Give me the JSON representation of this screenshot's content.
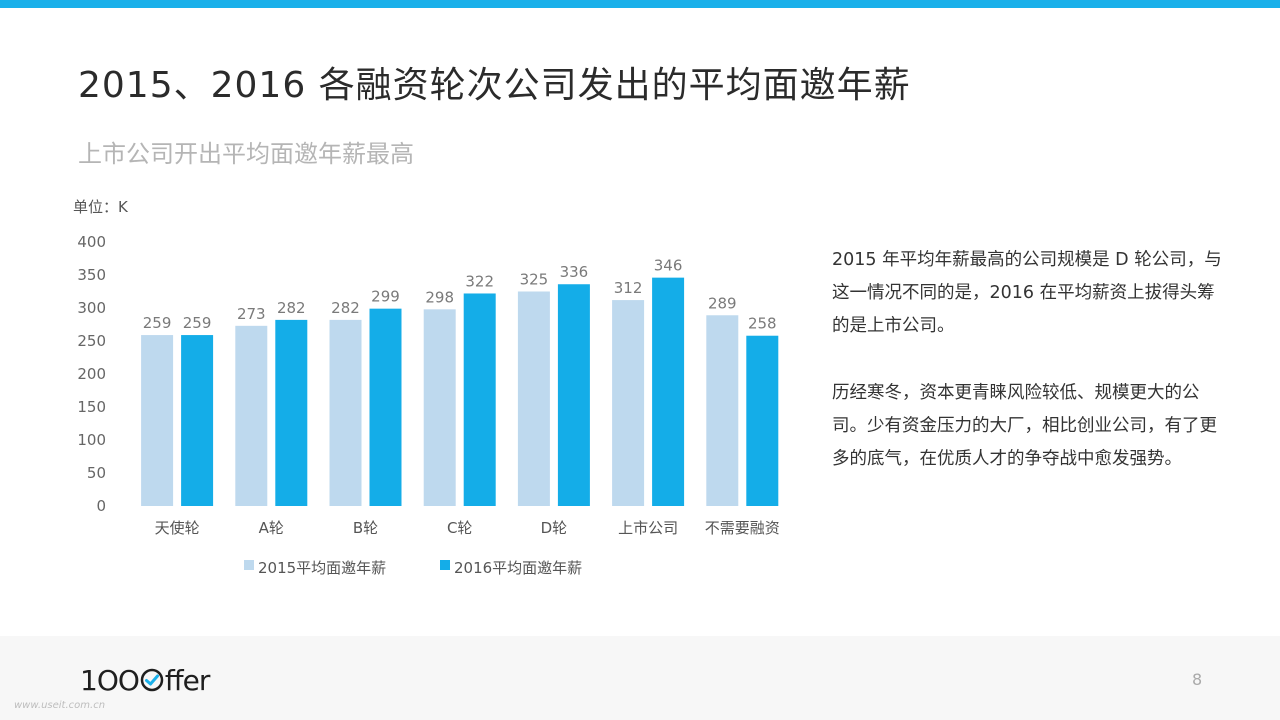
{
  "header": {
    "title": "2015、2016 各融资轮次公司发出的平均面邀年薪",
    "subtitle": "上市公司开出平均面邀年薪最高"
  },
  "colors": {
    "accent": "#1ab0ea",
    "series_2015": "#bed9ee",
    "series_2016": "#14ade8"
  },
  "chart_data": {
    "type": "bar",
    "unit_label": "单位：K",
    "categories": [
      "天使轮",
      "A轮",
      "B轮",
      "C轮",
      "D轮",
      "上市公司",
      "不需要融资"
    ],
    "series": [
      {
        "name": "2015平均面邀年薪",
        "values": [
          259,
          273,
          282,
          298,
          325,
          312,
          289
        ]
      },
      {
        "name": "2016平均面邀年薪",
        "values": [
          259,
          282,
          299,
          322,
          336,
          346,
          258
        ]
      }
    ],
    "ylim": [
      0,
      400
    ],
    "yticks": [
      0,
      50,
      100,
      150,
      200,
      250,
      300,
      350,
      400
    ],
    "grid": false,
    "legend": "bottom",
    "data_labels": true
  },
  "side": {
    "paragraph1": "2015 年平均年薪最高的公司规模是 D 轮公司，与这一情况不同的是，2016 在平均薪资上拔得头筹的是上市公司。",
    "paragraph2": "历经寒冬，资本更青睐风险较低、规模更大的公司。少有资金压力的大厂，相比创业公司，有了更多的底气，在优质人才的争夺战中愈发强势。"
  },
  "footer": {
    "logo_text": "1OOffer",
    "watermark": "www.useit.com.cn",
    "page_number": "8"
  }
}
